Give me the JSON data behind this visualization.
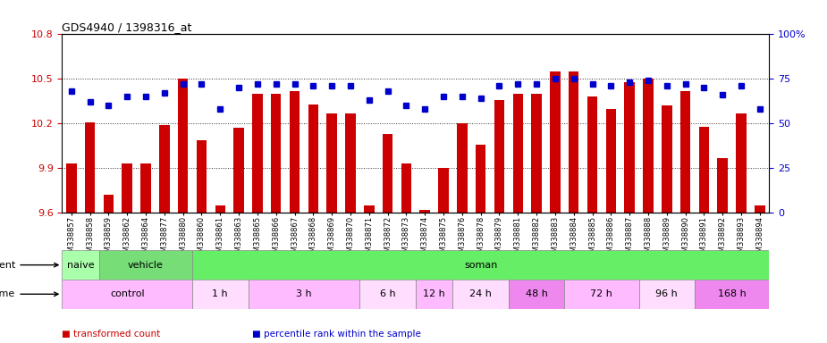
{
  "title": "GDS4940 / 1398316_at",
  "categories": [
    "GSM338857",
    "GSM338858",
    "GSM338859",
    "GSM338862",
    "GSM338864",
    "GSM338877",
    "GSM338880",
    "GSM338860",
    "GSM338861",
    "GSM338863",
    "GSM338865",
    "GSM338866",
    "GSM338867",
    "GSM338868",
    "GSM338869",
    "GSM338870",
    "GSM338871",
    "GSM338872",
    "GSM338873",
    "GSM338874",
    "GSM338875",
    "GSM338876",
    "GSM338878",
    "GSM338879",
    "GSM338881",
    "GSM338882",
    "GSM338883",
    "GSM338884",
    "GSM338885",
    "GSM338886",
    "GSM338887",
    "GSM338888",
    "GSM338889",
    "GSM338890",
    "GSM338891",
    "GSM338892",
    "GSM338893",
    "GSM338894"
  ],
  "bar_values": [
    9.93,
    10.21,
    9.72,
    9.93,
    9.93,
    10.19,
    10.5,
    10.09,
    9.65,
    10.17,
    10.4,
    10.4,
    10.42,
    10.33,
    10.27,
    10.27,
    9.65,
    10.13,
    9.93,
    9.62,
    9.9,
    10.2,
    10.06,
    10.36,
    10.4,
    10.4,
    10.55,
    10.55,
    10.38,
    10.3,
    10.48,
    10.5,
    10.32,
    10.42,
    10.18,
    9.97,
    10.27,
    9.65
  ],
  "percentile_values": [
    68,
    62,
    60,
    65,
    65,
    67,
    72,
    72,
    58,
    70,
    72,
    72,
    72,
    71,
    71,
    71,
    63,
    68,
    60,
    58,
    65,
    65,
    64,
    71,
    72,
    72,
    75,
    75,
    72,
    71,
    73,
    74,
    71,
    72,
    70,
    66,
    71,
    58
  ],
  "ylim": [
    9.6,
    10.8
  ],
  "yticks_left": [
    9.6,
    9.9,
    10.2,
    10.5,
    10.8
  ],
  "yticks_right": [
    0,
    25,
    50,
    75,
    100
  ],
  "bar_color": "#cc0000",
  "dot_color": "#0000cc",
  "plot_bg_color": "#ffffff",
  "grid_yticks": [
    9.9,
    10.2,
    10.5
  ],
  "agent_specs": [
    {
      "label": "naive",
      "start": 0,
      "end": 2,
      "color": "#aaffaa"
    },
    {
      "label": "vehicle",
      "start": 2,
      "end": 7,
      "color": "#77dd77"
    },
    {
      "label": "soman",
      "start": 7,
      "end": 38,
      "color": "#66ee66"
    }
  ],
  "time_specs": [
    {
      "label": "control",
      "start": 0,
      "end": 7,
      "color": "#ffbbff"
    },
    {
      "label": "1 h",
      "start": 7,
      "end": 10,
      "color": "#ffddff"
    },
    {
      "label": "3 h",
      "start": 10,
      "end": 16,
      "color": "#ffbbff"
    },
    {
      "label": "6 h",
      "start": 16,
      "end": 19,
      "color": "#ffddff"
    },
    {
      "label": "12 h",
      "start": 19,
      "end": 21,
      "color": "#ffbbff"
    },
    {
      "label": "24 h",
      "start": 21,
      "end": 24,
      "color": "#ffddff"
    },
    {
      "label": "48 h",
      "start": 24,
      "end": 27,
      "color": "#ee88ee"
    },
    {
      "label": "72 h",
      "start": 27,
      "end": 31,
      "color": "#ffbbff"
    },
    {
      "label": "96 h",
      "start": 31,
      "end": 34,
      "color": "#ffddff"
    },
    {
      "label": "168 h",
      "start": 34,
      "end": 38,
      "color": "#ee88ee"
    }
  ],
  "legend_items": [
    {
      "color": "#cc0000",
      "label": "transformed count"
    },
    {
      "color": "#0000cc",
      "label": "percentile rank within the sample"
    }
  ]
}
